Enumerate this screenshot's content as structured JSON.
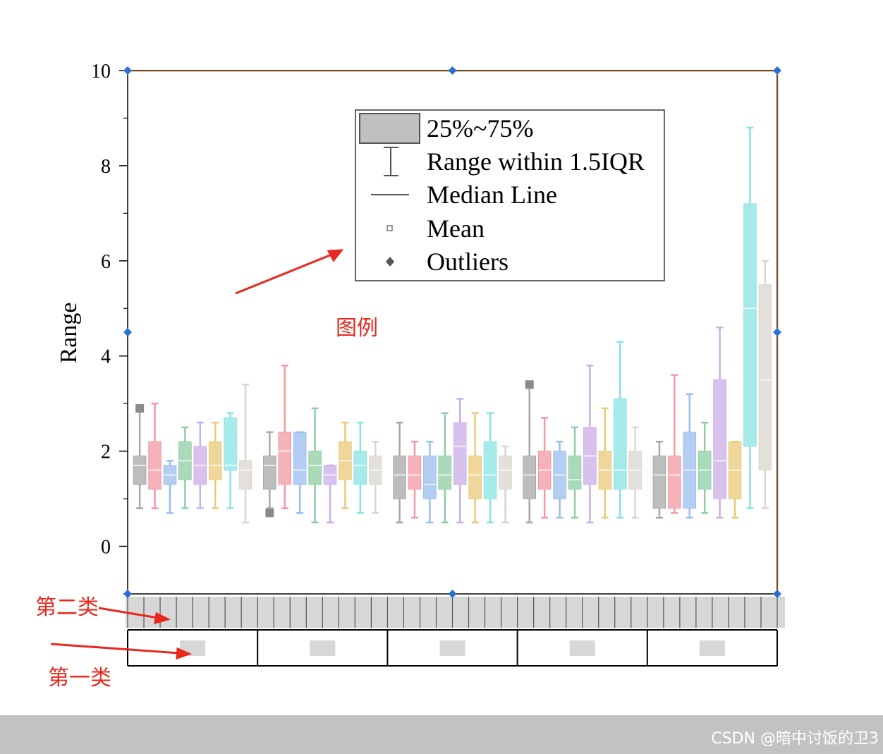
{
  "chart_data": {
    "type": "box",
    "ylabel": "Range",
    "ylim": [
      -1,
      10
    ],
    "yticks": [
      0,
      2,
      4,
      6,
      8,
      10
    ],
    "yticklabels": [
      "0",
      "2",
      "4",
      "6",
      "8",
      "10"
    ],
    "groups": 5,
    "boxes_per_group": 8,
    "series_colors": [
      "#9e9e9e",
      "#f08f98",
      "#8fb6ee",
      "#82c99a",
      "#c6a6e6",
      "#e8c46c",
      "#7ee0e0",
      "#d6d2ca"
    ],
    "boxes": [
      {
        "group": 0,
        "series": 0,
        "q1": 1.3,
        "median": 1.7,
        "q3": 1.9,
        "whisker_low": 0.8,
        "whisker_high": 2.9
      },
      {
        "group": 0,
        "series": 1,
        "q1": 1.2,
        "median": 1.6,
        "q3": 2.2,
        "whisker_low": 0.8,
        "whisker_high": 3.0
      },
      {
        "group": 0,
        "series": 2,
        "q1": 1.3,
        "median": 1.5,
        "q3": 1.7,
        "whisker_low": 0.7,
        "whisker_high": 1.8
      },
      {
        "group": 0,
        "series": 3,
        "q1": 1.4,
        "median": 1.8,
        "q3": 2.2,
        "whisker_low": 0.8,
        "whisker_high": 2.5
      },
      {
        "group": 0,
        "series": 4,
        "q1": 1.3,
        "median": 1.7,
        "q3": 2.1,
        "whisker_low": 0.8,
        "whisker_high": 2.6
      },
      {
        "group": 0,
        "series": 5,
        "q1": 1.4,
        "median": 1.7,
        "q3": 2.2,
        "whisker_low": 0.8,
        "whisker_high": 2.6
      },
      {
        "group": 0,
        "series": 6,
        "q1": 1.6,
        "median": 1.7,
        "q3": 2.7,
        "whisker_low": 0.8,
        "whisker_high": 2.8
      },
      {
        "group": 0,
        "series": 7,
        "q1": 1.2,
        "median": 1.6,
        "q3": 1.8,
        "whisker_low": 0.5,
        "whisker_high": 3.4
      },
      {
        "group": 1,
        "series": 0,
        "q1": 1.2,
        "median": 1.7,
        "q3": 1.9,
        "whisker_low": 0.8,
        "whisker_high": 2.4
      },
      {
        "group": 1,
        "series": 1,
        "q1": 1.3,
        "median": 2.0,
        "q3": 2.4,
        "whisker_low": 0.8,
        "whisker_high": 3.8
      },
      {
        "group": 1,
        "series": 2,
        "q1": 1.3,
        "median": 1.6,
        "q3": 2.4,
        "whisker_low": 0.7,
        "whisker_high": 2.4
      },
      {
        "group": 1,
        "series": 3,
        "q1": 1.3,
        "median": 1.7,
        "q3": 2.0,
        "whisker_low": 0.5,
        "whisker_high": 2.9
      },
      {
        "group": 1,
        "series": 4,
        "q1": 1.3,
        "median": 1.5,
        "q3": 1.7,
        "whisker_low": 0.5,
        "whisker_high": 1.7
      },
      {
        "group": 1,
        "series": 5,
        "q1": 1.4,
        "median": 1.8,
        "q3": 2.2,
        "whisker_low": 0.8,
        "whisker_high": 2.6
      },
      {
        "group": 1,
        "series": 6,
        "q1": 1.3,
        "median": 1.7,
        "q3": 2.0,
        "whisker_low": 0.7,
        "whisker_high": 2.6
      },
      {
        "group": 1,
        "series": 7,
        "q1": 1.3,
        "median": 1.6,
        "q3": 1.9,
        "whisker_low": 0.7,
        "whisker_high": 2.2
      },
      {
        "group": 2,
        "series": 0,
        "q1": 1.0,
        "median": 1.5,
        "q3": 1.9,
        "whisker_low": 0.5,
        "whisker_high": 2.6
      },
      {
        "group": 2,
        "series": 1,
        "q1": 1.2,
        "median": 1.5,
        "q3": 1.9,
        "whisker_low": 0.6,
        "whisker_high": 2.2
      },
      {
        "group": 2,
        "series": 2,
        "q1": 1.0,
        "median": 1.3,
        "q3": 1.9,
        "whisker_low": 0.5,
        "whisker_high": 2.2
      },
      {
        "group": 2,
        "series": 3,
        "q1": 1.2,
        "median": 1.5,
        "q3": 1.9,
        "whisker_low": 0.5,
        "whisker_high": 2.8
      },
      {
        "group": 2,
        "series": 4,
        "q1": 1.3,
        "median": 2.1,
        "q3": 2.6,
        "whisker_low": 0.5,
        "whisker_high": 3.1
      },
      {
        "group": 2,
        "series": 5,
        "q1": 1.0,
        "median": 1.5,
        "q3": 1.9,
        "whisker_low": 0.5,
        "whisker_high": 2.8
      },
      {
        "group": 2,
        "series": 6,
        "q1": 1.0,
        "median": 1.5,
        "q3": 2.2,
        "whisker_low": 0.5,
        "whisker_high": 2.8
      },
      {
        "group": 2,
        "series": 7,
        "q1": 1.2,
        "median": 1.6,
        "q3": 1.9,
        "whisker_low": 0.5,
        "whisker_high": 2.1
      },
      {
        "group": 3,
        "series": 0,
        "q1": 1.0,
        "median": 1.5,
        "q3": 1.9,
        "whisker_low": 0.5,
        "whisker_high": 3.4
      },
      {
        "group": 3,
        "series": 1,
        "q1": 1.2,
        "median": 1.6,
        "q3": 2.0,
        "whisker_low": 0.6,
        "whisker_high": 2.7
      },
      {
        "group": 3,
        "series": 2,
        "q1": 1.0,
        "median": 1.5,
        "q3": 2.0,
        "whisker_low": 0.6,
        "whisker_high": 2.2
      },
      {
        "group": 3,
        "series": 3,
        "q1": 1.2,
        "median": 1.4,
        "q3": 1.9,
        "whisker_low": 0.6,
        "whisker_high": 2.5
      },
      {
        "group": 3,
        "series": 4,
        "q1": 1.3,
        "median": 1.9,
        "q3": 2.5,
        "whisker_low": 0.5,
        "whisker_high": 3.8
      },
      {
        "group": 3,
        "series": 5,
        "q1": 1.2,
        "median": 1.6,
        "q3": 2.0,
        "whisker_low": 0.6,
        "whisker_high": 2.9
      },
      {
        "group": 3,
        "series": 6,
        "q1": 1.2,
        "median": 1.6,
        "q3": 3.1,
        "whisker_low": 0.6,
        "whisker_high": 4.3
      },
      {
        "group": 3,
        "series": 7,
        "q1": 1.2,
        "median": 1.6,
        "q3": 2.0,
        "whisker_low": 0.6,
        "whisker_high": 2.5
      },
      {
        "group": 4,
        "series": 0,
        "q1": 0.8,
        "median": 1.5,
        "q3": 1.9,
        "whisker_low": 0.6,
        "whisker_high": 2.2
      },
      {
        "group": 4,
        "series": 1,
        "q1": 0.8,
        "median": 1.5,
        "q3": 1.9,
        "whisker_low": 0.7,
        "whisker_high": 3.6
      },
      {
        "group": 4,
        "series": 2,
        "q1": 0.8,
        "median": 1.6,
        "q3": 2.4,
        "whisker_low": 0.6,
        "whisker_high": 3.2
      },
      {
        "group": 4,
        "series": 3,
        "q1": 1.2,
        "median": 1.6,
        "q3": 2.0,
        "whisker_low": 0.7,
        "whisker_high": 2.6
      },
      {
        "group": 4,
        "series": 4,
        "q1": 1.0,
        "median": 1.8,
        "q3": 3.5,
        "whisker_low": 0.6,
        "whisker_high": 4.6
      },
      {
        "group": 4,
        "series": 5,
        "q1": 1.0,
        "median": 1.6,
        "q3": 2.2,
        "whisker_low": 0.6,
        "whisker_high": 2.2
      },
      {
        "group": 4,
        "series": 6,
        "q1": 2.1,
        "median": 5.0,
        "q3": 7.2,
        "whisker_low": 0.8,
        "whisker_high": 8.8
      },
      {
        "group": 4,
        "series": 7,
        "q1": 1.6,
        "median": 3.5,
        "q3": 5.5,
        "whisker_low": 0.8,
        "whisker_high": 6.0
      }
    ],
    "outliers": [
      {
        "group": 0,
        "series": 0,
        "value": 2.9
      },
      {
        "group": 1,
        "series": 0,
        "value": 0.7
      },
      {
        "group": 3,
        "series": 0,
        "value": 3.4
      }
    ],
    "legend": {
      "placement": "top-center",
      "items": [
        {
          "label": "25%~75%",
          "symbol": "box"
        },
        {
          "label": "Range within 1.5IQR",
          "symbol": "whisker"
        },
        {
          "label": "Median Line",
          "symbol": "line"
        },
        {
          "label": "Mean",
          "symbol": "square"
        },
        {
          "label": "Outliers",
          "symbol": "diamond"
        }
      ]
    }
  },
  "annotations": {
    "legend_note": "图例",
    "second_category": "第二类",
    "first_category": "第一类",
    "color": "#e8281e"
  },
  "footer": {
    "watermark": "CSDN @暗中讨饭的卫3"
  }
}
